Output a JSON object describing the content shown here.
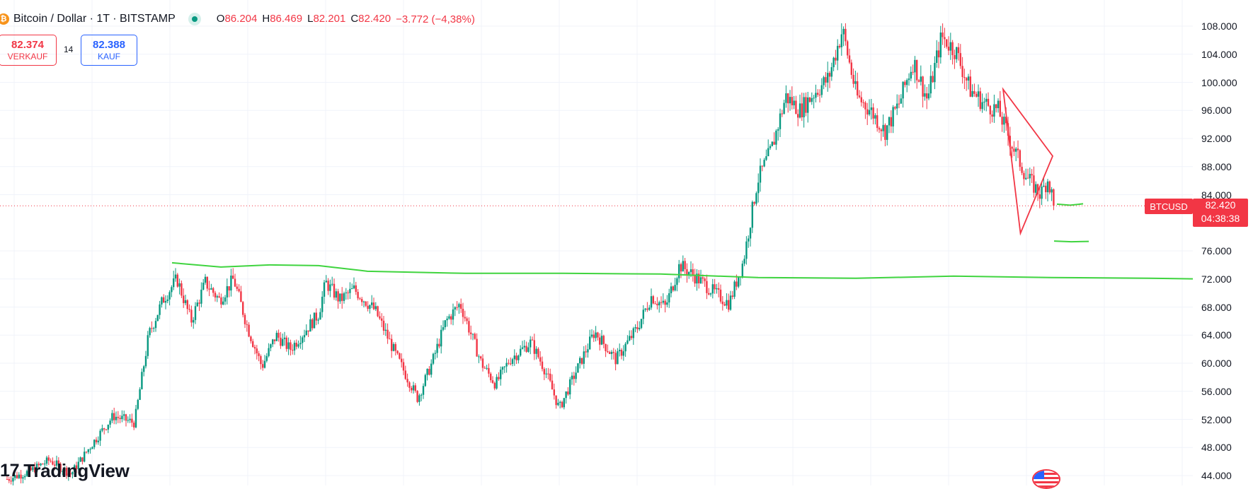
{
  "header": {
    "symbol": "Bitcoin / Dollar · 1T · BITSTAMP",
    "coin_glyph": "₿",
    "ohlc": [
      {
        "key": "O",
        "value": "86.204"
      },
      {
        "key": "H",
        "value": "86.469"
      },
      {
        "key": "L",
        "value": "82.201"
      },
      {
        "key": "C",
        "value": "82.420"
      }
    ],
    "change": "−3.772 (−4,38%)"
  },
  "trade": {
    "sell_price": "82.374",
    "sell_label": "VERKAUF",
    "spread": "14",
    "buy_price": "82.388",
    "buy_label": "KAUF"
  },
  "price_axis": {
    "ticks": [
      "108.000",
      "104.000",
      "100.000",
      "96.000",
      "92.000",
      "88.000",
      "84.000",
      "76.000",
      "72.000",
      "68.000",
      "64.000",
      "60.000",
      "56.000",
      "52.000",
      "48.000",
      "44.000"
    ]
  },
  "current_price": {
    "symbol_tag": "BTCUSD",
    "price": "82.420",
    "countdown": "04:38:38"
  },
  "branding": {
    "logo_text": "TradingView"
  },
  "colors": {
    "up": "#089981",
    "down": "#f23645",
    "drawing": "#3fd43f",
    "triangle": "#f23645"
  },
  "chart_data": {
    "type": "candlestick",
    "ylim": [
      44000,
      110000
    ],
    "last_price": 82420,
    "price_path": [
      [
        0.0,
        43500
      ],
      [
        0.03,
        44500
      ],
      [
        0.06,
        46200
      ],
      [
        0.09,
        44200
      ],
      [
        0.12,
        48500
      ],
      [
        0.15,
        52500
      ],
      [
        0.18,
        51500
      ],
      [
        0.2,
        64000
      ],
      [
        0.22,
        69000
      ],
      [
        0.24,
        72000
      ],
      [
        0.26,
        66000
      ],
      [
        0.28,
        71500
      ],
      [
        0.3,
        69000
      ],
      [
        0.32,
        72000
      ],
      [
        0.34,
        65000
      ],
      [
        0.36,
        59500
      ],
      [
        0.38,
        64000
      ],
      [
        0.4,
        62000
      ],
      [
        0.42,
        64500
      ],
      [
        0.44,
        67000
      ],
      [
        0.45,
        71500
      ],
      [
        0.47,
        69000
      ],
      [
        0.49,
        70500
      ],
      [
        0.52,
        67500
      ],
      [
        0.55,
        61000
      ],
      [
        0.58,
        55000
      ],
      [
        0.6,
        60000
      ],
      [
        0.62,
        66000
      ],
      [
        0.64,
        68500
      ],
      [
        0.67,
        60000
      ],
      [
        0.69,
        57000
      ],
      [
        0.71,
        60500
      ],
      [
        0.74,
        63000
      ],
      [
        0.76,
        59000
      ],
      [
        0.78,
        53500
      ],
      [
        0.8,
        58000
      ],
      [
        0.83,
        64500
      ],
      [
        0.86,
        60500
      ],
      [
        0.89,
        65000
      ],
      [
        0.91,
        69500
      ],
      [
        0.93,
        68000
      ],
      [
        0.95,
        74000
      ],
      [
        0.97,
        72500
      ],
      [
        1.0,
        70000
      ],
      [
        1.02,
        68500
      ],
      [
        1.04,
        74500
      ],
      [
        1.06,
        86000
      ],
      [
        1.08,
        90500
      ],
      [
        1.1,
        98000
      ],
      [
        1.12,
        96000
      ],
      [
        1.14,
        98500
      ],
      [
        1.16,
        100500
      ],
      [
        1.18,
        107500
      ],
      [
        1.2,
        98000
      ],
      [
        1.22,
        96000
      ],
      [
        1.24,
        93000
      ],
      [
        1.26,
        97000
      ],
      [
        1.28,
        103000
      ],
      [
        1.3,
        97500
      ],
      [
        1.32,
        106500
      ],
      [
        1.34,
        104500
      ],
      [
        1.36,
        99000
      ],
      [
        1.38,
        97000
      ],
      [
        1.4,
        96000
      ],
      [
        1.42,
        91000
      ],
      [
        1.44,
        86500
      ],
      [
        1.46,
        84000
      ],
      [
        1.47,
        86200
      ],
      [
        1.48,
        82420
      ]
    ],
    "horizontal_line": {
      "y": 82420,
      "style": "dotted",
      "color": "#f23645"
    },
    "drawings": {
      "support_line": [
        [
          0.0,
          74300
        ],
        [
          0.05,
          73700
        ],
        [
          0.1,
          74000
        ],
        [
          0.15,
          73900
        ],
        [
          0.2,
          73100
        ],
        [
          0.3,
          72800
        ],
        [
          0.4,
          72800
        ],
        [
          0.5,
          72700
        ],
        [
          0.6,
          72200
        ],
        [
          0.7,
          72100
        ],
        [
          0.8,
          72400
        ],
        [
          0.9,
          72200
        ],
        [
          1.0,
          72100
        ],
        [
          1.05,
          72000
        ],
        [
          1.1,
          72400
        ]
      ],
      "upper_stub": [
        [
          0,
          82650
        ],
        [
          0.5,
          82500
        ],
        [
          1,
          82700
        ]
      ],
      "lower_stub": [
        [
          0,
          77400
        ],
        [
          0.5,
          77300
        ],
        [
          1,
          77350
        ]
      ],
      "triangle": [
        [
          0,
          99000
        ],
        [
          1,
          89500
        ],
        [
          0.35,
          78500
        ]
      ]
    }
  }
}
